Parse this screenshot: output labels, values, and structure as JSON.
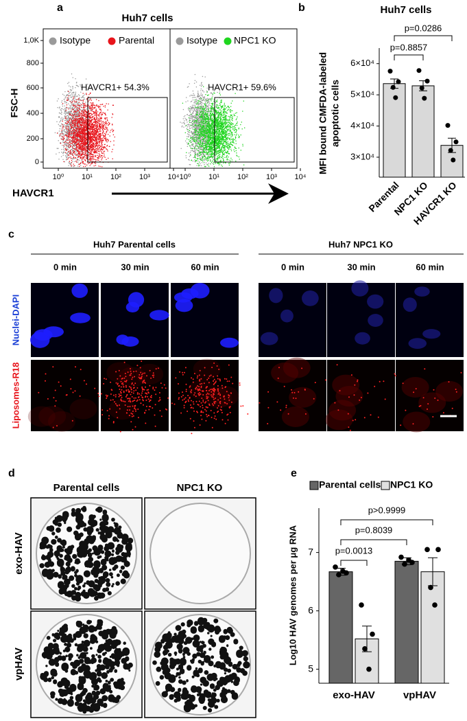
{
  "panel_labels": [
    "a",
    "b",
    "c",
    "d",
    "e"
  ],
  "panel_a": {
    "title": "Huh7 cells",
    "y_label": "FSC-H",
    "x_label": "HAVCR1",
    "y_ticks": [
      "1,0K",
      "800",
      "600",
      "400",
      "200",
      "0"
    ],
    "x_ticks": [
      "10⁰",
      "10¹",
      "10²",
      "10³",
      "10⁴"
    ],
    "plots": [
      {
        "legend": [
          "Isotype",
          "Parental"
        ],
        "colors": [
          "#9a9a9a",
          "#e8141b"
        ],
        "gate": "HAVCR1+ 54.3%"
      },
      {
        "legend": [
          "Isotype",
          "NPC1 KO"
        ],
        "colors": [
          "#9a9a9a",
          "#1fd61f"
        ],
        "gate": "HAVCR1+ 59.6%"
      }
    ]
  },
  "panel_c": {
    "groups": [
      {
        "title": "Huh7 Parental cells",
        "times": [
          "0 min",
          "30 min",
          "60 min"
        ]
      },
      {
        "title": "Huh7 NPC1 KO",
        "times": [
          "0 min",
          "30 min",
          "60 min"
        ]
      }
    ],
    "rows": [
      "Nuclei-DAPI",
      "Liposomes-R18"
    ]
  },
  "panel_d": {
    "columns": [
      "Parental cells",
      "NPC1 KO"
    ],
    "rows": [
      "exo-HAV",
      "vpHAV"
    ]
  },
  "chart_data": [
    {
      "type": "bar",
      "title": "Huh7 cells",
      "y_label": [
        "MFI bound CMFDA-labeled",
        "apoptotic cells"
      ],
      "categories": [
        "Parental",
        "NPC1 KO",
        "HAVCR1 KO"
      ],
      "values": [
        53600,
        52900,
        33800
      ],
      "errors": [
        1500,
        1600,
        2300
      ],
      "points": [
        [
          57600,
          54200,
          52400,
          49100
        ],
        [
          57800,
          54400,
          52200,
          48900
        ],
        [
          40200,
          34900,
          32200,
          29100
        ]
      ],
      "color": "#d9d9d9",
      "ylim": [
        23600,
        65000
      ],
      "yticks": [
        {
          "value": 30000,
          "label": "3×10⁴"
        },
        {
          "value": 40000,
          "label": "4×10⁴"
        },
        {
          "value": 50000,
          "label": "5×10⁴"
        },
        {
          "value": 60000,
          "label": "6×10⁴"
        }
      ],
      "annotations": [
        "p=0.8857",
        "p=0.0286"
      ]
    },
    {
      "type": "grouped_bar",
      "y_label": "Log10 HAV genomes per μg RNA",
      "categories": [
        "exo-HAV",
        "vpHAV"
      ],
      "series": [
        {
          "name": "Parental cells",
          "color": "#666666",
          "values": [
            6.67,
            6.85
          ],
          "errors": [
            0.06,
            0.06
          ],
          "points": [
            [
              6.75,
              6.65,
              6.62,
              6.68
            ],
            [
              6.92,
              6.83,
              6.8,
              6.87
            ]
          ]
        },
        {
          "name": "NPC1 KO",
          "color": "#e0e0e0",
          "values": [
            5.52,
            6.67
          ],
          "errors": [
            0.22,
            0.24
          ],
          "points": [
            [
              6.1,
              5.6,
              5.35,
              5.0
            ],
            [
              7.05,
              7.05,
              6.4,
              6.1
            ]
          ]
        }
      ],
      "ylim": [
        4.76,
        7.76
      ],
      "yticks": [
        5,
        6,
        7
      ],
      "annotations": [
        "p=0.0013",
        "p=0.8039",
        "p>0.9999"
      ]
    }
  ]
}
